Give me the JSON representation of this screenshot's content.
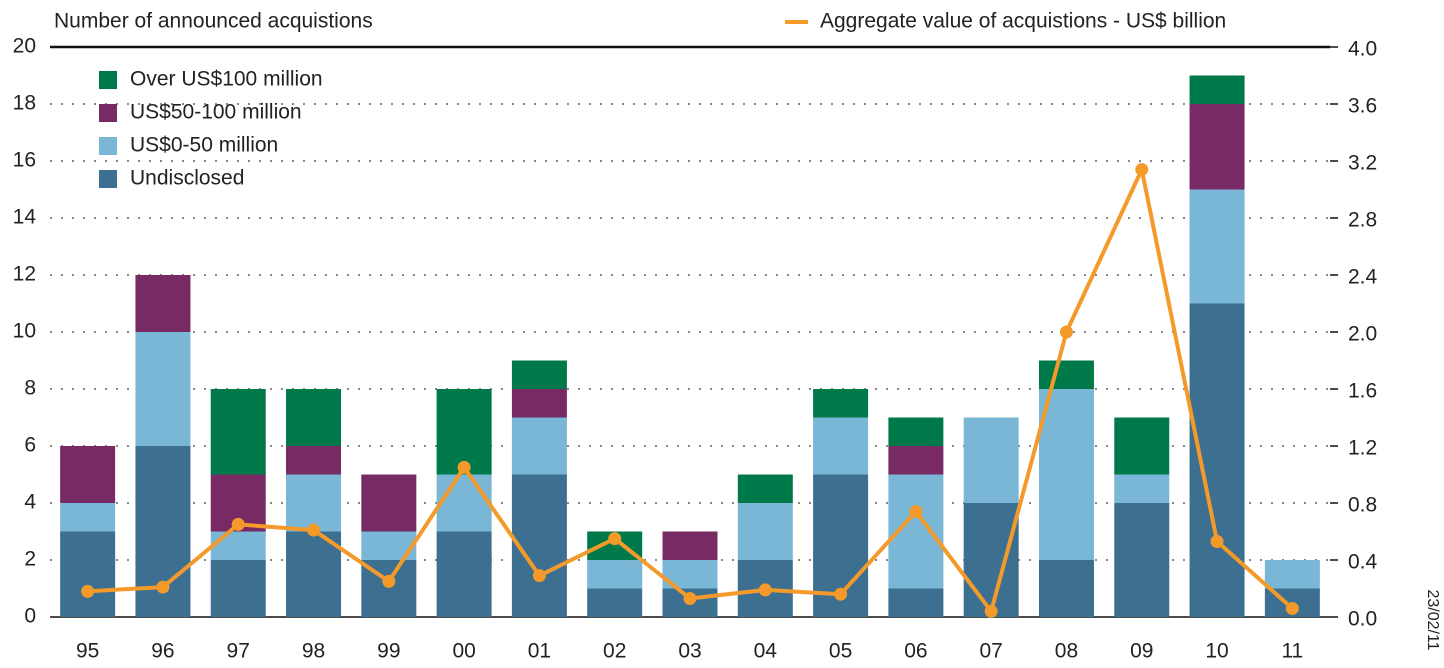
{
  "chart_data": {
    "type": "bar",
    "stacked": true,
    "ylabel": "Number of announced acquistions",
    "note": "23/02/11",
    "categories": [
      "95",
      "96",
      "97",
      "98",
      "99",
      "00",
      "01",
      "02",
      "03",
      "04",
      "05",
      "06",
      "07",
      "08",
      "09",
      "10",
      "11"
    ],
    "series": [
      {
        "name": "Undisclosed",
        "color": "#3d6f91",
        "values": [
          3,
          6,
          2,
          3,
          2,
          3,
          5,
          1,
          1,
          2,
          5,
          1,
          4,
          2,
          4,
          11,
          1
        ]
      },
      {
        "name": "US$0-50 million",
        "color": "#7ab6d6",
        "values": [
          1,
          4,
          1,
          2,
          1,
          2,
          2,
          1,
          1,
          2,
          2,
          4,
          3,
          6,
          1,
          4,
          1
        ]
      },
      {
        "name": "US$50-100 million",
        "color": "#772a63",
        "values": [
          2,
          2,
          2,
          1,
          2,
          0,
          1,
          0,
          1,
          0,
          0,
          1,
          0,
          0,
          0,
          3,
          0
        ]
      },
      {
        "name": "Over US$100 million",
        "color": "#00794a",
        "values": [
          0,
          0,
          3,
          2,
          0,
          3,
          1,
          1,
          0,
          1,
          1,
          1,
          0,
          1,
          2,
          1,
          0
        ]
      },
      {
        "name": "Aggregate value of acquistions - US$ billion",
        "color": "#f39a2b",
        "type": "line",
        "axis": "y2",
        "values": [
          0.18,
          0.21,
          0.65,
          0.61,
          0.25,
          1.05,
          0.29,
          0.55,
          0.13,
          0.19,
          0.16,
          0.74,
          0.04,
          2.0,
          3.14,
          0.53,
          0.06
        ]
      }
    ],
    "ylim": [
      0,
      20
    ],
    "yticks": [
      0,
      2,
      4,
      6,
      8,
      10,
      12,
      14,
      16,
      18,
      20
    ],
    "y2lim": [
      0,
      4
    ],
    "y2ticks": [
      {
        "value": 0,
        "label": "0.0"
      },
      0.4,
      0.8,
      1.2,
      1.6,
      {
        "value": 2,
        "label": "2.0"
      },
      2.4,
      2.8,
      3.2,
      3.6,
      {
        "value": 4,
        "label": "4.0"
      }
    ],
    "grid": true,
    "legend": "upper left"
  }
}
